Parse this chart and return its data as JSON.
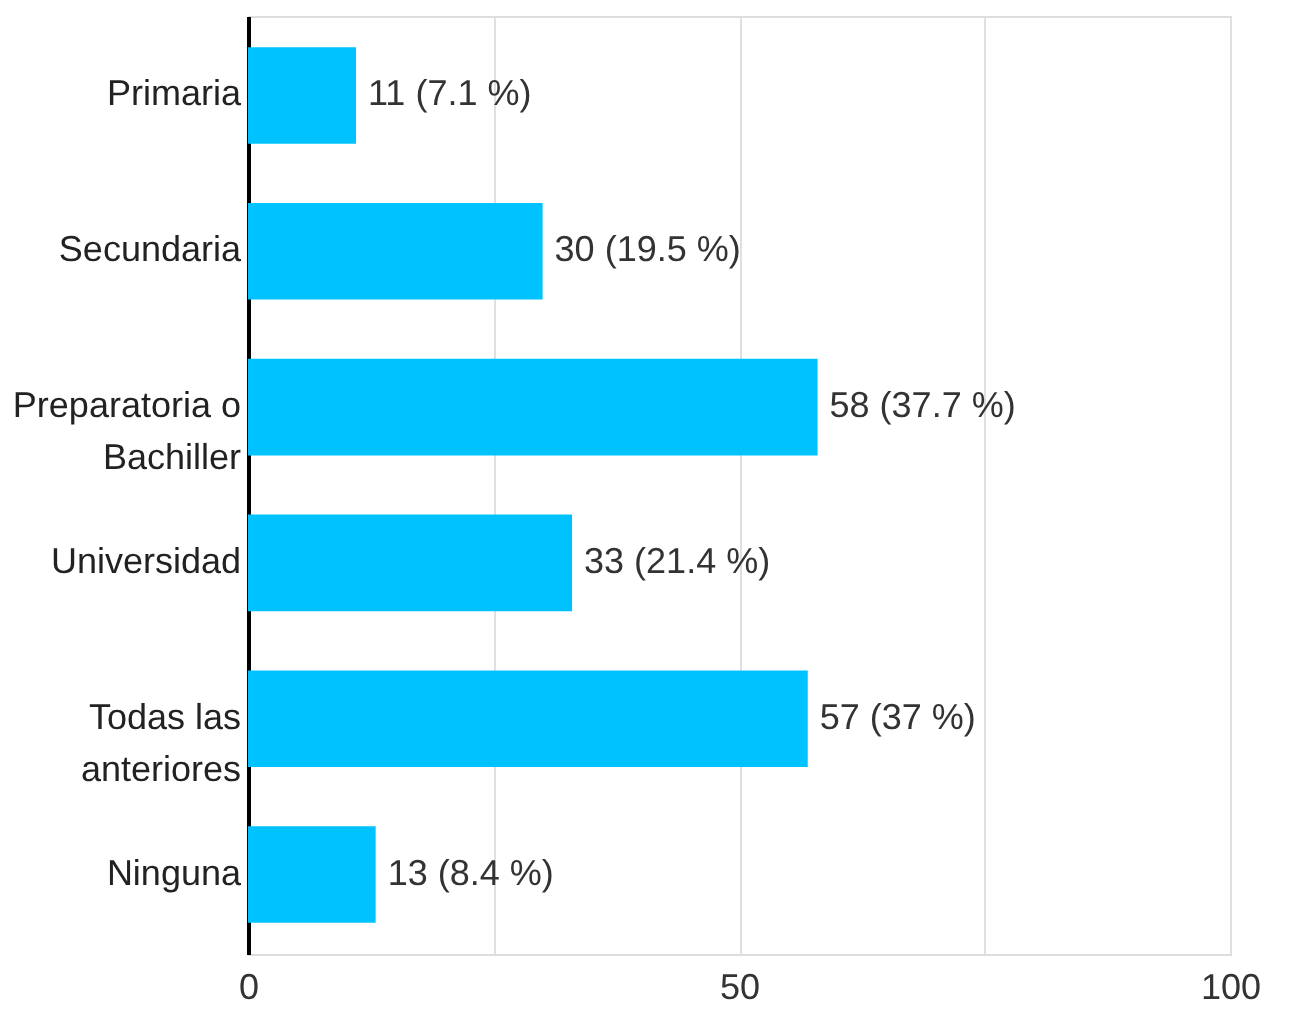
{
  "chart_data": {
    "type": "bar",
    "orientation": "horizontal",
    "categories": [
      "Primaria",
      "Secundaria",
      "Preparatoria o\nBachiller",
      "Universidad",
      "Todas las\nanteriores",
      "Ninguna"
    ],
    "values": [
      11,
      30,
      58,
      33,
      57,
      13
    ],
    "value_labels": [
      "11 (7.1 %)",
      "30 (19.5 %)",
      "58 (37.7 %)",
      "33 (21.4 %)",
      "57 (37 %)",
      "13 (8.4 %)"
    ],
    "color": "#00c2ff",
    "xlim": [
      0,
      100
    ],
    "xticks": [
      0,
      {
        "value": 25,
        "label": null
      },
      50,
      {
        "value": 75,
        "label": null
      },
      100
    ],
    "grid": "x"
  }
}
